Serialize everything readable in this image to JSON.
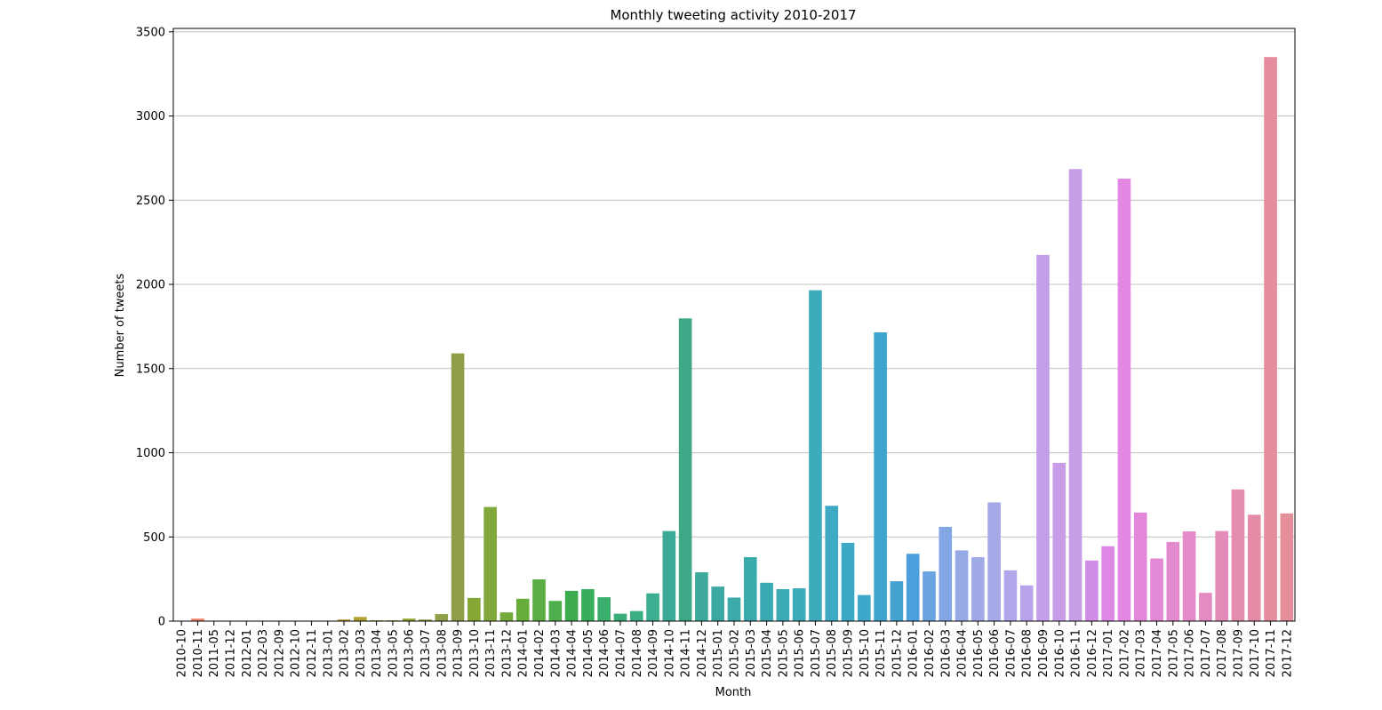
{
  "chart_data": {
    "type": "bar",
    "title": "Monthly tweeting activity 2010-2017",
    "xlabel": "Month",
    "ylabel": "Number of tweets",
    "ylim": [
      0,
      3520
    ],
    "yticks": [
      0,
      500,
      1000,
      1500,
      2000,
      2500,
      3000,
      3500
    ],
    "grid": "horizontal",
    "categories": [
      "2010-10",
      "2010-11",
      "2011-05",
      "2011-12",
      "2012-01",
      "2012-03",
      "2012-09",
      "2012-10",
      "2012-11",
      "2013-01",
      "2013-02",
      "2013-03",
      "2013-04",
      "2013-05",
      "2013-06",
      "2013-07",
      "2013-08",
      "2013-09",
      "2013-10",
      "2013-11",
      "2013-12",
      "2014-01",
      "2014-02",
      "2014-03",
      "2014-04",
      "2014-05",
      "2014-06",
      "2014-07",
      "2014-08",
      "2014-09",
      "2014-10",
      "2014-11",
      "2014-12",
      "2015-01",
      "2015-02",
      "2015-03",
      "2015-04",
      "2015-05",
      "2015-06",
      "2015-07",
      "2015-08",
      "2015-09",
      "2015-10",
      "2015-11",
      "2015-12",
      "2016-01",
      "2016-02",
      "2016-03",
      "2016-04",
      "2016-05",
      "2016-06",
      "2016-07",
      "2016-08",
      "2016-09",
      "2016-10",
      "2016-11",
      "2016-12",
      "2017-01",
      "2017-02",
      "2017-03",
      "2017-04",
      "2017-05",
      "2017-06",
      "2017-07",
      "2017-08",
      "2017-09",
      "2017-10",
      "2017-11",
      "2017-12"
    ],
    "values": [
      1,
      15,
      1,
      1,
      1,
      1,
      1,
      1,
      1,
      1,
      10,
      25,
      5,
      5,
      15,
      10,
      42,
      1590,
      138,
      678,
      52,
      133,
      248,
      120,
      180,
      190,
      142,
      44,
      60,
      165,
      535,
      1798,
      290,
      205,
      140,
      380,
      228,
      190,
      195,
      1965,
      685,
      465,
      155,
      1715,
      237,
      400,
      295,
      560,
      420,
      380,
      705,
      302,
      212,
      2175,
      940,
      2685,
      360,
      445,
      2628,
      645,
      372,
      470,
      533,
      168,
      535,
      782,
      632,
      3350,
      640
    ],
    "colors": [
      "#f37f78",
      "#f27f6a",
      "#ee8152",
      "#e98536",
      "#e38a31",
      "#dc8d31",
      "#d6903a",
      "#cf9331",
      "#c89631",
      "#c19a31",
      "#b99d31",
      "#b0a131",
      "#a6a331",
      "#9ca431",
      "#93a431",
      "#8fa23e",
      "#8fa24a",
      "#8f9f48",
      "#86a636",
      "#80a83b",
      "#74ab3a",
      "#68ad3c",
      "#5cad43",
      "#4caf4c",
      "#3bab4e",
      "#38ae5d",
      "#3aae6c",
      "#3aae78",
      "#3aaf83",
      "#3aae8e",
      "#3aaa97",
      "#3fa888",
      "#3ca99b",
      "#3ba9a2",
      "#3baaa9",
      "#3aaaad",
      "#3aaab2",
      "#3babb5",
      "#3babb9",
      "#3eabbd",
      "#3eaac3",
      "#3ba9c4",
      "#3da8ca",
      "#3ea6cd",
      "#44a3d1",
      "#4ba0db",
      "#6aa3e1",
      "#83a6e4",
      "#94a9e6",
      "#9faae7",
      "#a5a9e8",
      "#b0a6e9",
      "#b6a3ea",
      "#c49ee9",
      "#c99ce8",
      "#c59ee6",
      "#d18ce8",
      "#de89e8",
      "#e487e3",
      "#e487da",
      "#e388d4",
      "#e38acf",
      "#e58bc9",
      "#e48cc1",
      "#e48cb9",
      "#e48caf",
      "#e48ca6",
      "#e58c9e",
      "#e48e9a"
    ]
  }
}
